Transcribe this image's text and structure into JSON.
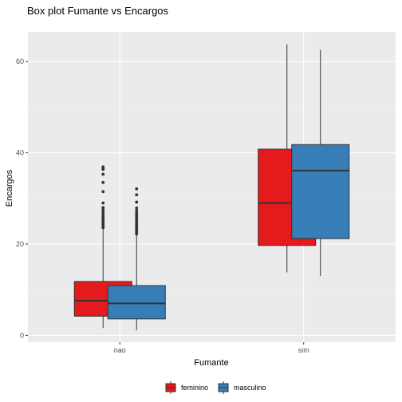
{
  "chart_data": {
    "type": "box",
    "title": "Box plot Fumante vs Encargos",
    "xlabel": "Fumante",
    "ylabel": "Encargos",
    "categories": [
      "nao",
      "sim"
    ],
    "ylim": [
      -1.5,
      66.5
    ],
    "yticks": [
      0,
      20,
      40,
      60
    ],
    "grid": true,
    "legend_position": "bottom",
    "series": [
      {
        "name": "feminino",
        "color": "#e41a1c",
        "boxes": [
          {
            "category": "nao",
            "min": 1.6,
            "q1": 4.2,
            "median": 7.6,
            "q3": 11.8,
            "max": 23.3,
            "outliers": [
              23.6,
              24.0,
              24.4,
              24.8,
              25.2,
              25.6,
              26.0,
              26.5,
              27.0,
              27.5,
              28.0,
              29.0,
              31.5,
              33.5,
              35.3,
              36.4,
              36.9
            ]
          },
          {
            "category": "sim",
            "min": 13.8,
            "q1": 19.7,
            "median": 29.0,
            "q3": 40.8,
            "max": 63.8,
            "outliers": []
          }
        ]
      },
      {
        "name": "masculino",
        "color": "#377eb8",
        "boxes": [
          {
            "category": "nao",
            "min": 1.1,
            "q1": 3.6,
            "median": 7.0,
            "q3": 10.9,
            "max": 21.9,
            "outliers": [
              22.2,
              22.6,
              23.0,
              23.4,
              23.8,
              24.2,
              24.6,
              25.0,
              25.4,
              25.8,
              26.3,
              26.8,
              27.3,
              27.9,
              29.2,
              30.8,
              32.1
            ]
          },
          {
            "category": "sim",
            "min": 13.0,
            "q1": 21.2,
            "median": 36.1,
            "q3": 41.8,
            "max": 62.6,
            "outliers": []
          }
        ]
      }
    ]
  }
}
